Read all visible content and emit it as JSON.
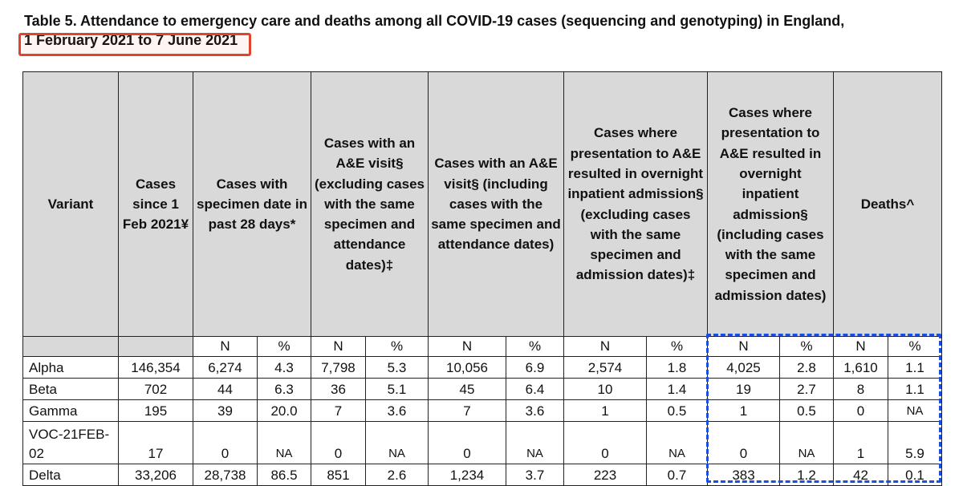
{
  "title_line1": "Table 5. Attendance to emergency care and deaths among all COVID-19 cases (sequencing and genotyping) in England,",
  "title_line2": "1 February 2021 to 7 June 2021",
  "highlight_colors": {
    "red_box": "#e0442f",
    "blue_box": "#1b4fe0"
  },
  "headers": {
    "variant": "Variant",
    "cases_since": "Cases since 1 Feb 2021¥",
    "specimen_28": "Cases with specimen date in past 28 days*",
    "ae_excl": "Cases with an A&E visit§ (excluding cases with the same specimen and attendance dates)‡",
    "ae_incl": "Cases with an A&E visit§ (including cases with the same specimen and attendance dates)",
    "adm_excl": "Cases where presentation to A&E resulted in overnight inpatient admission§ (excluding cases with the same specimen and admission dates)‡",
    "adm_incl": "Cases where presentation to A&E resulted in overnight inpatient admission§ (including cases with the same specimen and admission dates)",
    "deaths": "Deaths^"
  },
  "subheaders": {
    "n": "N",
    "pct": "%"
  },
  "rows": [
    {
      "variant": "Alpha",
      "cases": "146,354",
      "s28_n": "6,274",
      "s28_p": "4.3",
      "aex_n": "7,798",
      "aex_p": "5.3",
      "ain_n": "10,056",
      "ain_p": "6.9",
      "adx_n": "2,574",
      "adx_p": "1.8",
      "adi_n": "4,025",
      "adi_p": "2.8",
      "d_n": "1,610",
      "d_p": "1.1"
    },
    {
      "variant": "Beta",
      "cases": "702",
      "s28_n": "44",
      "s28_p": "6.3",
      "aex_n": "36",
      "aex_p": "5.1",
      "ain_n": "45",
      "ain_p": "6.4",
      "adx_n": "10",
      "adx_p": "1.4",
      "adi_n": "19",
      "adi_p": "2.7",
      "d_n": "8",
      "d_p": "1.1"
    },
    {
      "variant": "Gamma",
      "cases": "195",
      "s28_n": "39",
      "s28_p": "20.0",
      "aex_n": "7",
      "aex_p": "3.6",
      "ain_n": "7",
      "ain_p": "3.6",
      "adx_n": "1",
      "adx_p": "0.5",
      "adi_n": "1",
      "adi_p": "0.5",
      "d_n": "0",
      "d_p": "NA"
    },
    {
      "variant": "VOC-21FEB-02",
      "cases": "17",
      "s28_n": "0",
      "s28_p": "NA",
      "aex_n": "0",
      "aex_p": "NA",
      "ain_n": "0",
      "ain_p": "NA",
      "adx_n": "0",
      "adx_p": "NA",
      "adi_n": "0",
      "adi_p": "NA",
      "d_n": "1",
      "d_p": "5.9"
    },
    {
      "variant": "Delta",
      "cases": "33,206",
      "s28_n": "28,738",
      "s28_p": "86.5",
      "aex_n": "851",
      "aex_p": "2.6",
      "ain_n": "1,234",
      "ain_p": "3.7",
      "adx_n": "223",
      "adx_p": "0.7",
      "adi_n": "383",
      "adi_p": "1.2",
      "d_n": "42",
      "d_p": "0.1"
    }
  ]
}
